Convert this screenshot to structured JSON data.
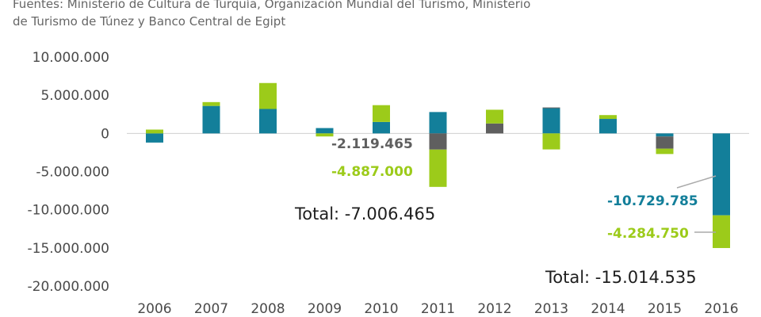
{
  "source": {
    "line1": "Fuentes: Ministerio de Cultura de Turquía, Organización Mundial del Turismo, Ministerio",
    "line2": "de Turismo de Túnez y Banco Central de Egipt"
  },
  "colors": {
    "teal": "#137f9a",
    "green": "#9ccb1a",
    "gray": "#5f5f5f",
    "axis": "#d0d0d0"
  },
  "chart_data": {
    "type": "bar",
    "stacked": true,
    "categories": [
      "2006",
      "2007",
      "2008",
      "2009",
      "2010",
      "2011",
      "2012",
      "2013",
      "2014",
      "2015",
      "2016"
    ],
    "series": [
      {
        "color": "teal",
        "values": [
          -1200000,
          3600000,
          3200000,
          700000,
          1500000,
          2800000,
          0,
          3300000,
          1900000,
          -400000,
          -10729785
        ]
      },
      {
        "color": "gray",
        "values": [
          0,
          0,
          0,
          0,
          0,
          -2119465,
          1300000,
          100000,
          0,
          -1600000,
          0
        ]
      },
      {
        "color": "green",
        "values": [
          500000,
          500000,
          3400000,
          -400000,
          2200000,
          -4887000,
          1800000,
          -2100000,
          500000,
          -700000,
          -4284750
        ]
      }
    ],
    "ylim": [
      -20000000,
      10000000
    ],
    "yticks": [
      10000000,
      5000000,
      0,
      -5000000,
      -10000000,
      -15000000,
      -20000000
    ],
    "ytick_labels": [
      "10.000.000",
      "5.000.000",
      "0",
      "-5.000.000",
      "-10.000.000",
      "-15.000.000",
      "-20.000.000"
    ],
    "annotations": {
      "a2011_gray": "-2.119.465",
      "a2011_green": "-4.887.000",
      "a2011_total": "Total: -7.006.465",
      "a2016_teal": "-10.729.785",
      "a2016_green": "-4.284.750",
      "a2016_total": "Total: -15.014.535"
    }
  }
}
